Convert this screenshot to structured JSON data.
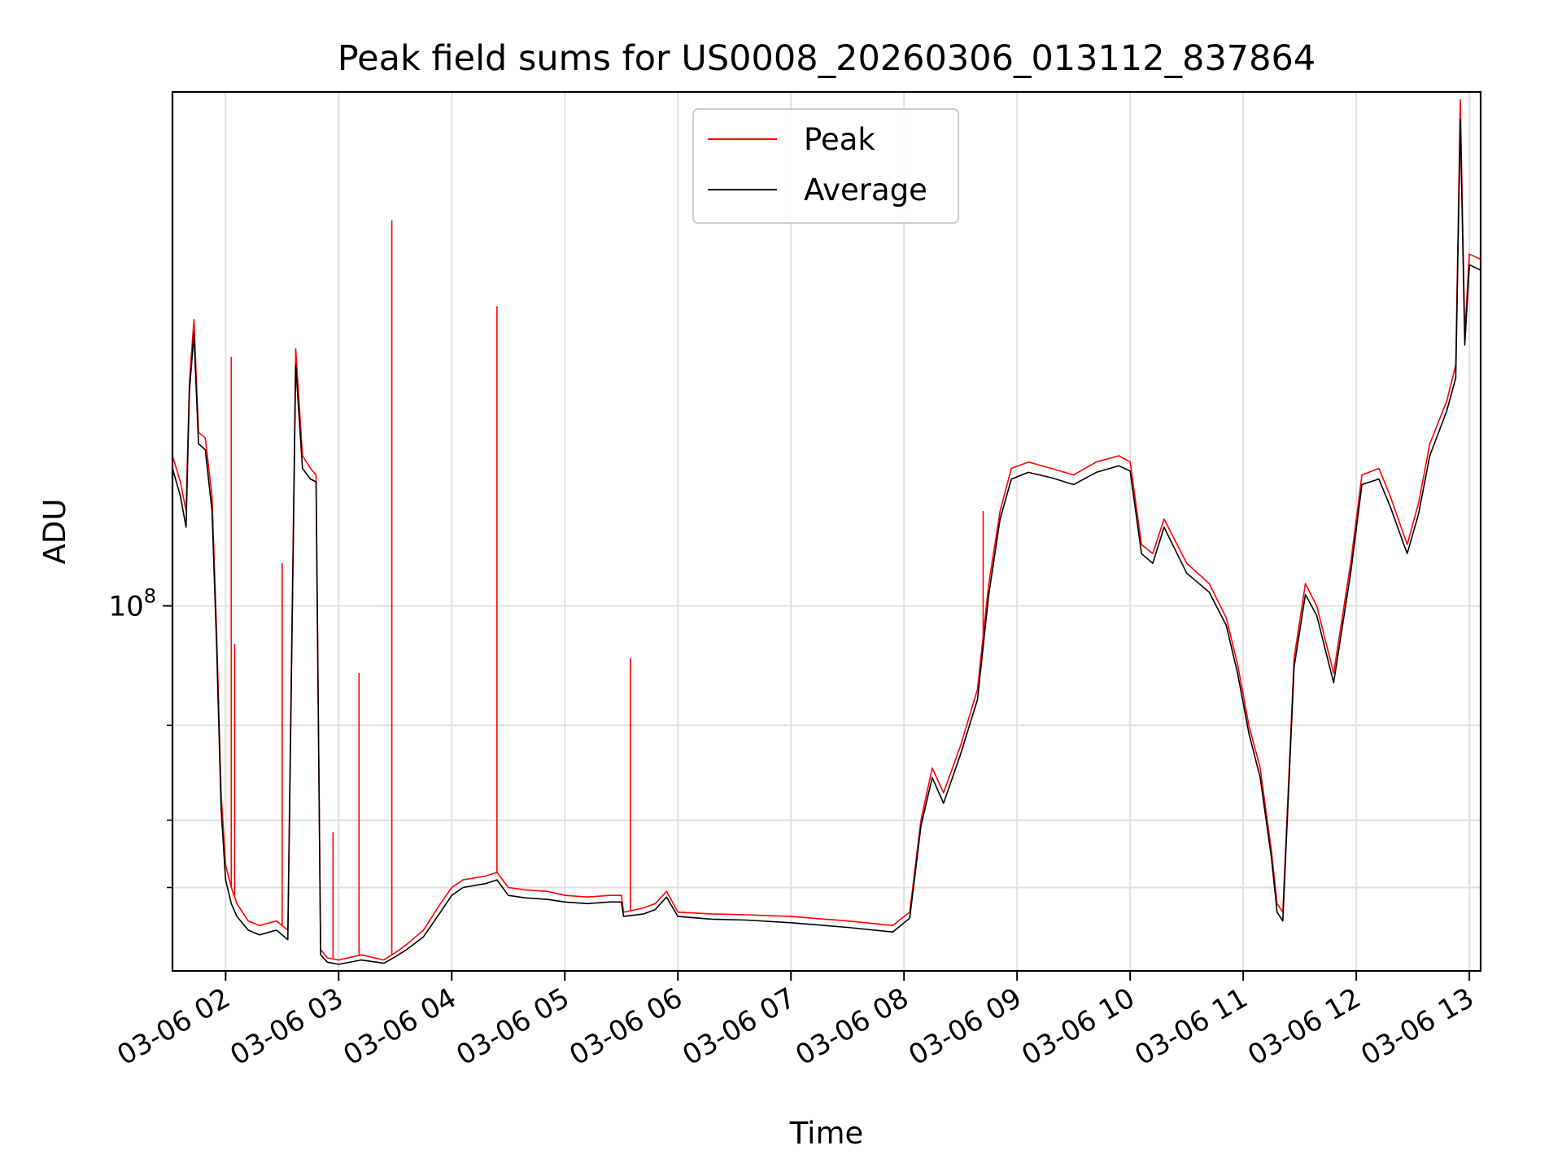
{
  "chart_data": {
    "type": "line",
    "title": "Peak field sums for US0008_20260306_013112_837864",
    "xlabel": "Time",
    "ylabel": "ADU",
    "y_scale": "log",
    "ylim": [
      21000000,
      900000000
    ],
    "y_major_ticks": [
      {
        "value": 100000000,
        "label_base": "10",
        "label_exp": "8"
      }
    ],
    "y_minor_ticks": [
      30000000,
      40000000,
      60000000
    ],
    "x_unit": "hours since 03-06 00:00",
    "xlim": [
      1.53,
      13.1
    ],
    "x_ticks": [
      {
        "value": 2,
        "label": "03-06 02"
      },
      {
        "value": 3,
        "label": "03-06 03"
      },
      {
        "value": 4,
        "label": "03-06 04"
      },
      {
        "value": 5,
        "label": "03-06 05"
      },
      {
        "value": 6,
        "label": "03-06 06"
      },
      {
        "value": 7,
        "label": "03-06 07"
      },
      {
        "value": 8,
        "label": "03-06 08"
      },
      {
        "value": 9,
        "label": "03-06 09"
      },
      {
        "value": 10,
        "label": "03-06 10"
      },
      {
        "value": 11,
        "label": "03-06 11"
      },
      {
        "value": 12,
        "label": "03-06 12"
      },
      {
        "value": 13,
        "label": "03-06 13"
      }
    ],
    "grid": true,
    "legend": {
      "placement": "upper-center",
      "entries": [
        "Peak",
        "Average"
      ]
    },
    "series": [
      {
        "name": "Peak",
        "color": "#ff0000",
        "points": [
          [
            1.53,
            190000000
          ],
          [
            1.6,
            170000000
          ],
          [
            1.65,
            150000000
          ],
          [
            1.68,
            260000000
          ],
          [
            1.72,
            340000000
          ],
          [
            1.76,
            210000000
          ],
          [
            1.82,
            205000000
          ],
          [
            1.88,
            160000000
          ],
          [
            1.92,
            90000000
          ],
          [
            1.96,
            45000000
          ],
          [
            2.0,
            33000000
          ],
          [
            2.05,
            30000000
          ],
          [
            2.1,
            28000000
          ],
          [
            2.2,
            26000000
          ],
          [
            2.3,
            25500000
          ],
          [
            2.45,
            26000000
          ],
          [
            2.55,
            25000000
          ],
          [
            2.62,
            300000000
          ],
          [
            2.68,
            190000000
          ],
          [
            2.75,
            180000000
          ],
          [
            2.8,
            175000000
          ],
          [
            2.84,
            23000000
          ],
          [
            2.9,
            22200000
          ],
          [
            3.0,
            22000000
          ],
          [
            3.2,
            22500000
          ],
          [
            3.4,
            22000000
          ],
          [
            3.5,
            22700000
          ],
          [
            3.6,
            23500000
          ],
          [
            3.75,
            25000000
          ],
          [
            3.9,
            28000000
          ],
          [
            4.0,
            30000000
          ],
          [
            4.1,
            31000000
          ],
          [
            4.3,
            31500000
          ],
          [
            4.4,
            32000000
          ],
          [
            4.5,
            30000000
          ],
          [
            4.65,
            29700000
          ],
          [
            4.85,
            29500000
          ],
          [
            5.0,
            29000000
          ],
          [
            5.2,
            28800000
          ],
          [
            5.4,
            29000000
          ],
          [
            5.5,
            29000000
          ],
          [
            5.52,
            27000000
          ],
          [
            5.7,
            27500000
          ],
          [
            5.8,
            28000000
          ],
          [
            5.9,
            29500000
          ],
          [
            6.0,
            27000000
          ],
          [
            6.3,
            26800000
          ],
          [
            6.6,
            26700000
          ],
          [
            7.0,
            26500000
          ],
          [
            7.5,
            26000000
          ],
          [
            7.9,
            25500000
          ],
          [
            8.05,
            27000000
          ],
          [
            8.15,
            40000000
          ],
          [
            8.25,
            50000000
          ],
          [
            8.35,
            45000000
          ],
          [
            8.5,
            55000000
          ],
          [
            8.65,
            70000000
          ],
          [
            8.75,
            110000000
          ],
          [
            8.85,
            150000000
          ],
          [
            8.95,
            180000000
          ],
          [
            9.1,
            185000000
          ],
          [
            9.3,
            180000000
          ],
          [
            9.5,
            175000000
          ],
          [
            9.7,
            185000000
          ],
          [
            9.9,
            190000000
          ],
          [
            10.0,
            185000000
          ],
          [
            10.1,
            130000000
          ],
          [
            10.2,
            125000000
          ],
          [
            10.3,
            145000000
          ],
          [
            10.5,
            120000000
          ],
          [
            10.7,
            110000000
          ],
          [
            10.85,
            95000000
          ],
          [
            10.95,
            78000000
          ],
          [
            11.05,
            60000000
          ],
          [
            11.15,
            50000000
          ],
          [
            11.25,
            35000000
          ],
          [
            11.3,
            28000000
          ],
          [
            11.35,
            27000000
          ],
          [
            11.45,
            80000000
          ],
          [
            11.55,
            110000000
          ],
          [
            11.65,
            100000000
          ],
          [
            11.8,
            75000000
          ],
          [
            11.95,
            120000000
          ],
          [
            12.05,
            175000000
          ],
          [
            12.2,
            180000000
          ],
          [
            12.3,
            160000000
          ],
          [
            12.45,
            130000000
          ],
          [
            12.55,
            155000000
          ],
          [
            12.65,
            200000000
          ],
          [
            12.8,
            240000000
          ],
          [
            12.88,
            280000000
          ],
          [
            12.92,
            870000000
          ],
          [
            12.96,
            320000000
          ],
          [
            13.0,
            450000000
          ],
          [
            13.1,
            440000000
          ]
        ]
      },
      {
        "name": "Average",
        "color": "#000000",
        "points": [
          [
            1.53,
            180000000
          ],
          [
            1.6,
            160000000
          ],
          [
            1.65,
            140000000
          ],
          [
            1.68,
            250000000
          ],
          [
            1.72,
            320000000
          ],
          [
            1.76,
            200000000
          ],
          [
            1.82,
            195000000
          ],
          [
            1.88,
            150000000
          ],
          [
            1.92,
            85000000
          ],
          [
            1.96,
            42000000
          ],
          [
            2.0,
            31000000
          ],
          [
            2.05,
            28000000
          ],
          [
            2.1,
            26500000
          ],
          [
            2.2,
            25000000
          ],
          [
            2.3,
            24500000
          ],
          [
            2.45,
            25000000
          ],
          [
            2.55,
            24000000
          ],
          [
            2.62,
            280000000
          ],
          [
            2.68,
            180000000
          ],
          [
            2.75,
            172000000
          ],
          [
            2.8,
            170000000
          ],
          [
            2.84,
            22500000
          ],
          [
            2.9,
            21800000
          ],
          [
            3.0,
            21600000
          ],
          [
            3.2,
            22000000
          ],
          [
            3.4,
            21700000
          ],
          [
            3.5,
            22300000
          ],
          [
            3.6,
            23000000
          ],
          [
            3.75,
            24300000
          ],
          [
            3.9,
            27000000
          ],
          [
            4.0,
            29000000
          ],
          [
            4.1,
            30000000
          ],
          [
            4.3,
            30500000
          ],
          [
            4.4,
            31000000
          ],
          [
            4.5,
            29000000
          ],
          [
            4.65,
            28700000
          ],
          [
            4.85,
            28500000
          ],
          [
            5.0,
            28200000
          ],
          [
            5.2,
            28000000
          ],
          [
            5.4,
            28200000
          ],
          [
            5.5,
            28200000
          ],
          [
            5.52,
            26500000
          ],
          [
            5.7,
            26800000
          ],
          [
            5.8,
            27300000
          ],
          [
            5.9,
            28800000
          ],
          [
            6.0,
            26500000
          ],
          [
            6.3,
            26200000
          ],
          [
            6.6,
            26100000
          ],
          [
            7.0,
            25800000
          ],
          [
            7.5,
            25300000
          ],
          [
            7.9,
            24800000
          ],
          [
            8.05,
            26300000
          ],
          [
            8.15,
            39000000
          ],
          [
            8.25,
            48000000
          ],
          [
            8.35,
            43000000
          ],
          [
            8.5,
            53000000
          ],
          [
            8.65,
            67000000
          ],
          [
            8.75,
            105000000
          ],
          [
            8.85,
            145000000
          ],
          [
            8.95,
            172000000
          ],
          [
            9.1,
            177000000
          ],
          [
            9.3,
            173000000
          ],
          [
            9.5,
            168000000
          ],
          [
            9.7,
            177000000
          ],
          [
            9.9,
            182000000
          ],
          [
            10.0,
            178000000
          ],
          [
            10.1,
            125000000
          ],
          [
            10.2,
            120000000
          ],
          [
            10.3,
            140000000
          ],
          [
            10.5,
            115000000
          ],
          [
            10.7,
            106000000
          ],
          [
            10.85,
            92000000
          ],
          [
            10.95,
            75000000
          ],
          [
            11.05,
            58000000
          ],
          [
            11.15,
            48000000
          ],
          [
            11.25,
            34000000
          ],
          [
            11.3,
            27000000
          ],
          [
            11.35,
            26000000
          ],
          [
            11.45,
            77000000
          ],
          [
            11.55,
            105000000
          ],
          [
            11.65,
            96000000
          ],
          [
            11.8,
            72000000
          ],
          [
            11.95,
            115000000
          ],
          [
            12.05,
            168000000
          ],
          [
            12.2,
            172000000
          ],
          [
            12.3,
            153000000
          ],
          [
            12.45,
            125000000
          ],
          [
            12.55,
            148000000
          ],
          [
            12.65,
            190000000
          ],
          [
            12.8,
            230000000
          ],
          [
            12.88,
            265000000
          ],
          [
            12.92,
            800000000
          ],
          [
            12.96,
            305000000
          ],
          [
            13.0,
            430000000
          ],
          [
            13.1,
            420000000
          ]
        ]
      }
    ],
    "peak_spikes": [
      {
        "x": 2.05,
        "y": 290000000
      },
      {
        "x": 2.08,
        "y": 85000000
      },
      {
        "x": 2.5,
        "y": 120000000
      },
      {
        "x": 2.95,
        "y": 38000000
      },
      {
        "x": 3.18,
        "y": 75000000
      },
      {
        "x": 3.47,
        "y": 520000000
      },
      {
        "x": 4.4,
        "y": 360000000
      },
      {
        "x": 5.58,
        "y": 80000000
      },
      {
        "x": 8.7,
        "y": 150000000
      }
    ]
  }
}
